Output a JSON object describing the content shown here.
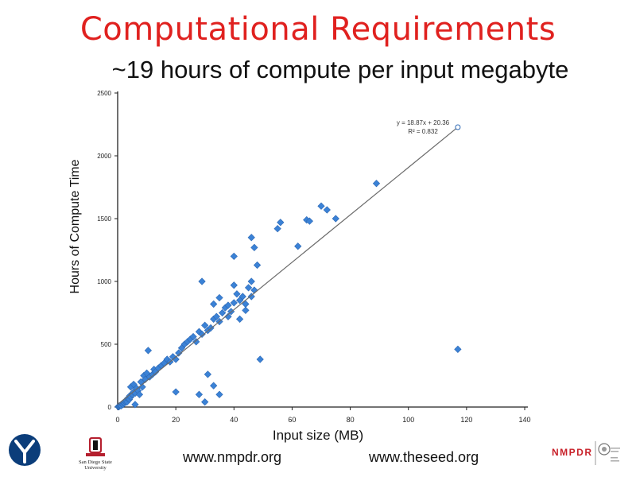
{
  "slide": {
    "title": "Computational Requirements",
    "subtitle": "~19 hours of compute per input megabyte",
    "footer_links": [
      "www.nmpdr.org",
      "www.theseed.org"
    ],
    "logos": {
      "left_logo": "university-y-logo",
      "sdsu_logo_text": "San Diego State University",
      "right_logo_text": "NMPDR"
    }
  },
  "colors": {
    "title": "#e0211f",
    "points": "#3b82d6",
    "points_edge": "#2d68b4",
    "trendline": "#6a6a6a"
  },
  "chart_data": {
    "type": "scatter",
    "xlabel": "Input size (MB)",
    "ylabel": "Hours of Compute Time",
    "xlim": [
      0,
      140
    ],
    "ylim": [
      0,
      2500
    ],
    "xticks": [
      0,
      20,
      40,
      60,
      80,
      100,
      120,
      140
    ],
    "yticks": [
      0,
      500,
      1000,
      1500,
      2000,
      2500
    ],
    "grid": false,
    "legend": "none",
    "trendline": {
      "slope": 18.87,
      "intercept": 20.36,
      "x_range": [
        0,
        117
      ],
      "equation_label": "y = 18.87x + 20.36",
      "r2_label": "R² = 0.832"
    },
    "points": [
      [
        0.2,
        2
      ],
      [
        0.3,
        5
      ],
      [
        0.4,
        3
      ],
      [
        0.5,
        8
      ],
      [
        0.6,
        6
      ],
      [
        0.8,
        12
      ],
      [
        1.0,
        15
      ],
      [
        1.2,
        10
      ],
      [
        1.5,
        25
      ],
      [
        1.8,
        20
      ],
      [
        2.0,
        35
      ],
      [
        2.3,
        30
      ],
      [
        2.5,
        45
      ],
      [
        3.0,
        55
      ],
      [
        3.2,
        40
      ],
      [
        3.5,
        70
      ],
      [
        4.0,
        60
      ],
      [
        4.2,
        90
      ],
      [
        4.5,
        80
      ],
      [
        5.0,
        100
      ],
      [
        5.5,
        120
      ],
      [
        6.0,
        110
      ],
      [
        6.5,
        150
      ],
      [
        7.0,
        130
      ],
      [
        4.5,
        160
      ],
      [
        5.5,
        180
      ],
      [
        6.0,
        20
      ],
      [
        7.5,
        100
      ],
      [
        8.0,
        200
      ],
      [
        8.5,
        160
      ],
      [
        9.0,
        250
      ],
      [
        9.5,
        220
      ],
      [
        10.0,
        270
      ],
      [
        10.5,
        450
      ],
      [
        11.0,
        240
      ],
      [
        12.0,
        260
      ],
      [
        12.5,
        300
      ],
      [
        13.0,
        280
      ],
      [
        14.0,
        310
      ],
      [
        15.0,
        330
      ],
      [
        16.0,
        350
      ],
      [
        17.0,
        380
      ],
      [
        18.0,
        360
      ],
      [
        19.0,
        400
      ],
      [
        20.0,
        380
      ],
      [
        21.0,
        430
      ],
      [
        22.0,
        470
      ],
      [
        23.0,
        500
      ],
      [
        24.0,
        520
      ],
      [
        25.0,
        540
      ],
      [
        26.0,
        560
      ],
      [
        27.0,
        520
      ],
      [
        28.0,
        600
      ],
      [
        29.0,
        580
      ],
      [
        30.0,
        650
      ],
      [
        31.0,
        610
      ],
      [
        32.0,
        630
      ],
      [
        33.0,
        700
      ],
      [
        34.0,
        720
      ],
      [
        35.0,
        680
      ],
      [
        36.0,
        750
      ],
      [
        37.0,
        790
      ],
      [
        38.0,
        810
      ],
      [
        39.0,
        760
      ],
      [
        40.0,
        830
      ],
      [
        41.0,
        900
      ],
      [
        42.0,
        850
      ],
      [
        43.0,
        880
      ],
      [
        44.0,
        820
      ],
      [
        45.0,
        950
      ],
      [
        46.0,
        1000
      ],
      [
        47.0,
        930
      ],
      [
        33.0,
        820
      ],
      [
        35.0,
        870
      ],
      [
        38.0,
        720
      ],
      [
        40.0,
        970
      ],
      [
        42.0,
        700
      ],
      [
        44.0,
        770
      ],
      [
        46.0,
        880
      ],
      [
        48.0,
        1130
      ],
      [
        29.0,
        1000
      ],
      [
        40.0,
        1200
      ],
      [
        47.0,
        1270
      ],
      [
        46.0,
        1350
      ],
      [
        55.0,
        1420
      ],
      [
        56.0,
        1470
      ],
      [
        62.0,
        1280
      ],
      [
        65.0,
        1490
      ],
      [
        66.0,
        1480
      ],
      [
        70.0,
        1600
      ],
      [
        72.0,
        1570
      ],
      [
        75.0,
        1500
      ],
      [
        89.0,
        1780
      ],
      [
        20.0,
        120
      ],
      [
        28.0,
        100
      ],
      [
        30.0,
        40
      ],
      [
        31.0,
        260
      ],
      [
        33.0,
        170
      ],
      [
        35.0,
        100
      ],
      [
        49.0,
        380
      ],
      [
        117.0,
        460
      ]
    ],
    "highlight_point": [
      117.0,
      2228
    ]
  }
}
